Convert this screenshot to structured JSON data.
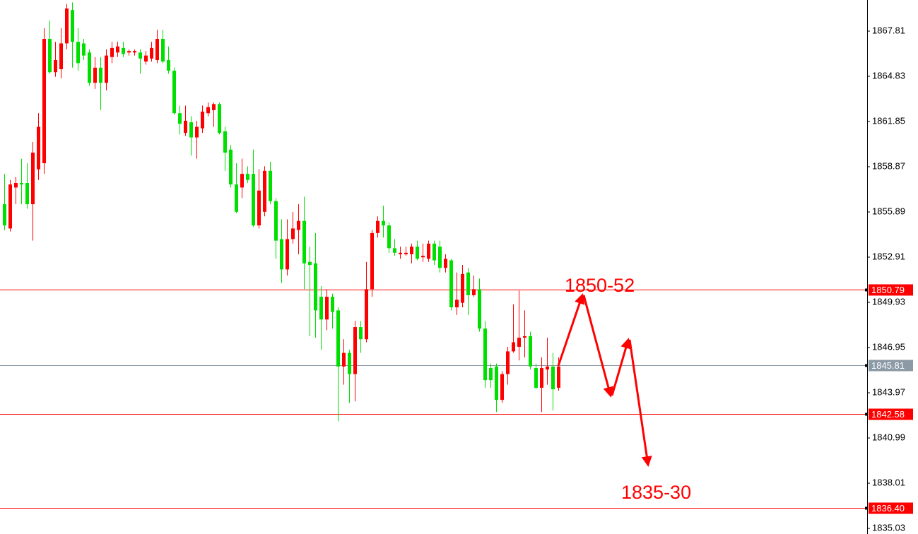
{
  "chart_data": {
    "type": "candlestick",
    "up_color": "#ff0000",
    "down_color": "#00e000",
    "ylim": [
      1834.66,
      1869.86
    ],
    "yticks": [
      1867.81,
      1864.83,
      1861.85,
      1858.87,
      1855.89,
      1852.91,
      1849.93,
      1846.95,
      1843.97,
      1840.99,
      1838.01,
      1835.03
    ],
    "levels": [
      {
        "value": 1850.79,
        "color": "#ff0000"
      },
      {
        "value": 1845.81,
        "color": "#8c9aa5"
      },
      {
        "value": 1842.58,
        "color": "#ff0000"
      },
      {
        "value": 1836.4,
        "label": "1836.40",
        "color": "#ff0000"
      }
    ],
    "annotations": [
      {
        "text": "1850-52"
      },
      {
        "text": "1835-30"
      }
    ],
    "open": [
      1856.4,
      1854.8,
      1857.5,
      1857.8,
      1857.8,
      1856.4,
      1858.7,
      1859.1,
      1867.3,
      1865.1,
      1865.3,
      1867.0,
      1869.2,
      1867.1,
      1867.0,
      1866.4,
      1864.4,
      1865.4,
      1864.4,
      1866.1,
      1866.4,
      1866.7,
      1866.4,
      1866.4,
      1866.4,
      1865.8,
      1866.0,
      1865.9,
      1867.3,
      1865.9,
      1865.2,
      1862.4,
      1861.1,
      1861.8,
      1860.8,
      1861.4,
      1862.4,
      1862.6,
      1863.0,
      1861.2,
      1860.0,
      1857.7,
      1857.5,
      1858.4,
      1858.4,
      1855.0,
      1855.9,
      1858.6,
      1856.6,
      1854.1,
      1852.1,
      1854.1,
      1854.7,
      1855.3,
      1852.6,
      1852.5,
      1850.3,
      1848.8,
      1850.3,
      1849.4,
      1845.7,
      1846.6,
      1845.2,
      1848.3,
      1847.5,
      1850.8,
      1854.5,
      1855.3,
      1855.0,
      1853.5,
      1853.1,
      1853.1,
      1853.1,
      1853.6,
      1852.9,
      1852.8,
      1853.8,
      1853.6,
      1852.2,
      1852.7,
      1849.6,
      1849.9,
      1851.9,
      1850.4,
      1850.8,
      1848.2,
      1845.6,
      1845.7,
      1843.5,
      1845.2,
      1846.7,
      1847.0,
      1847.6,
      1847.7,
      1845.6,
      1844.3,
      1845.5,
      1845.7,
      1844.3
    ],
    "high": [
      1858.4,
      1858.0,
      1858.2,
      1859.4,
      1859.1,
      1860.5,
      1862.4,
      1868.0,
      1868.5,
      1867.1,
      1868.0,
      1869.6,
      1869.7,
      1868.0,
      1867.3,
      1866.6,
      1866.1,
      1866.1,
      1866.6,
      1867.1,
      1867.1,
      1867.1,
      1866.6,
      1866.6,
      1866.6,
      1866.5,
      1867.1,
      1867.9,
      1867.9,
      1866.8,
      1865.4,
      1862.9,
      1862.9,
      1862.2,
      1861.9,
      1862.9,
      1863.1,
      1863.1,
      1863.1,
      1861.5,
      1860.3,
      1859.1,
      1859.4,
      1858.9,
      1860.0,
      1858.7,
      1858.9,
      1859.2,
      1856.8,
      1855.4,
      1855.4,
      1855.9,
      1856.4,
      1856.9,
      1853.6,
      1854.5,
      1851.0,
      1850.8,
      1850.5,
      1849.6,
      1847.5,
      1846.8,
      1848.7,
      1848.7,
      1852.6,
      1854.7,
      1855.6,
      1856.3,
      1855.2,
      1854.1,
      1853.6,
      1853.6,
      1853.8,
      1854.0,
      1853.8,
      1854.0,
      1854.0,
      1854.0,
      1853.1,
      1852.8,
      1851.9,
      1852.4,
      1852.2,
      1851.7,
      1851.5,
      1848.7,
      1845.9,
      1845.9,
      1845.4,
      1847.0,
      1849.8,
      1850.7,
      1849.4,
      1848.0,
      1845.9,
      1846.3,
      1847.6,
      1846.6,
      1846.3
    ],
    "low": [
      1854.7,
      1854.6,
      1856.4,
      1856.4,
      1856.1,
      1854.0,
      1858.0,
      1858.4,
      1865.0,
      1864.8,
      1864.7,
      1866.6,
      1865.4,
      1865.2,
      1865.9,
      1864.2,
      1864.0,
      1862.6,
      1863.9,
      1865.7,
      1866.1,
      1866.1,
      1866.2,
      1866.2,
      1865.0,
      1865.6,
      1865.8,
      1865.7,
      1865.7,
      1865.0,
      1862.3,
      1861.0,
      1860.9,
      1859.6,
      1859.4,
      1861.1,
      1862.2,
      1861.5,
      1861.0,
      1858.6,
      1857.5,
      1855.8,
      1856.8,
      1857.8,
      1854.9,
      1854.8,
      1855.6,
      1856.4,
      1852.8,
      1851.2,
      1851.7,
      1853.8,
      1853.1,
      1850.8,
      1847.7,
      1847.6,
      1846.8,
      1848.1,
      1848.2,
      1842.1,
      1844.5,
      1843.3,
      1843.4,
      1846.6,
      1847.3,
      1850.3,
      1854.2,
      1854.2,
      1853.2,
      1853.0,
      1852.8,
      1853.0,
      1852.5,
      1852.7,
      1852.6,
      1852.6,
      1852.4,
      1851.9,
      1851.9,
      1849.4,
      1849.1,
      1849.6,
      1849.1,
      1850.3,
      1848.0,
      1844.3,
      1844.3,
      1842.7,
      1843.3,
      1844.5,
      1846.6,
      1846.1,
      1846.3,
      1845.5,
      1844.2,
      1842.7,
      1844.5,
      1842.8,
      1844.1
    ],
    "close": [
      1855.0,
      1857.7,
      1857.8,
      1857.7,
      1856.4,
      1859.8,
      1861.5,
      1867.3,
      1865.1,
      1865.9,
      1867.0,
      1869.3,
      1867.1,
      1865.7,
      1866.2,
      1864.4,
      1865.4,
      1864.4,
      1866.2,
      1866.7,
      1866.8,
      1866.3,
      1866.5,
      1866.5,
      1866.0,
      1866.2,
      1866.7,
      1867.3,
      1865.8,
      1865.2,
      1862.4,
      1861.7,
      1861.9,
      1860.8,
      1861.5,
      1862.5,
      1862.8,
      1863.0,
      1861.1,
      1859.8,
      1857.7,
      1855.9,
      1858.4,
      1858.0,
      1855.0,
      1857.3,
      1858.6,
      1856.6,
      1854.0,
      1852.1,
      1854.1,
      1854.8,
      1855.3,
      1852.5,
      1852.4,
      1849.4,
      1848.8,
      1850.3,
      1849.3,
      1845.7,
      1846.6,
      1845.2,
      1848.3,
      1847.5,
      1850.8,
      1854.5,
      1855.3,
      1855.0,
      1853.5,
      1853.2,
      1853.2,
      1853.2,
      1853.6,
      1852.8,
      1853.0,
      1853.8,
      1852.7,
      1852.2,
      1852.8,
      1849.6,
      1850.1,
      1851.8,
      1850.4,
      1850.8,
      1848.2,
      1844.8,
      1844.8,
      1843.5,
      1845.2,
      1846.7,
      1847.3,
      1847.6,
      1847.7,
      1845.7,
      1844.3,
      1845.6,
      1845.7,
      1844.2,
      1845.7
    ]
  }
}
